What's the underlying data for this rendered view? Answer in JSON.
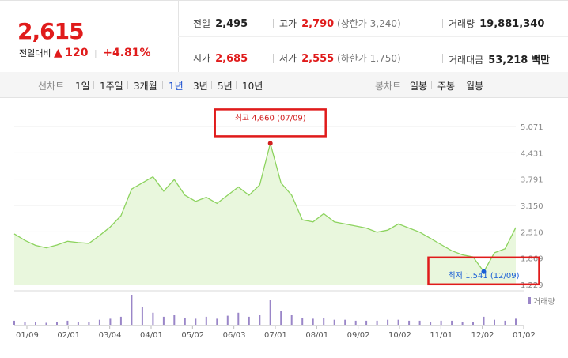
{
  "summary": {
    "price": "2,615",
    "change_label": "전일대비",
    "change_arrow": "▲",
    "change_amount": "120",
    "change_percent": "+4.81%",
    "prev_close_label": "전일",
    "prev_close": "2,495",
    "high_label": "고가",
    "high": "2,790",
    "upper_limit": "(상한가 3,240)",
    "volume_label": "거래량",
    "volume": "19,881,340",
    "open_label": "시가",
    "open": "2,685",
    "low_label": "저가",
    "low": "2,555",
    "lower_limit": "(하한가 1,750)",
    "turnover_label": "거래대금",
    "turnover": "53,218",
    "turnover_unit": "백만"
  },
  "tabs": {
    "line_chart_label": "선차트",
    "periods": [
      "1일",
      "1주일",
      "3개월",
      "1년",
      "3년",
      "5년",
      "10년"
    ],
    "selected_period": "1년",
    "candle_chart_label": "봉차트",
    "candle_periods": [
      "일봉",
      "주봉",
      "월봉"
    ]
  },
  "colors": {
    "accent_red": "#e01b1b",
    "accent_blue": "#1a4fd0",
    "line_green": "#8dd35f",
    "fill_green": "#e9f7dd"
  },
  "chart_data": {
    "type": "area",
    "title": "",
    "xlabel": "",
    "ylabel": "",
    "y_ticks": [
      "5,071",
      "4,431",
      "3,791",
      "3,150",
      "2,510",
      "1,869",
      "1,229"
    ],
    "ylim": [
      1229,
      5071
    ],
    "x_ticks": [
      "01/09",
      "02/01",
      "03/04",
      "04/01",
      "05/02",
      "06/03",
      "07/01",
      "08/01",
      "09/02",
      "10/02",
      "11/01",
      "12/02",
      "01/02"
    ],
    "x": [
      "01/09",
      "01/16",
      "01/23",
      "02/01",
      "02/08",
      "02/15",
      "02/22",
      "03/04",
      "03/11",
      "03/18",
      "03/25",
      "04/01",
      "04/08",
      "04/15",
      "04/22",
      "05/02",
      "05/09",
      "05/16",
      "05/23",
      "06/03",
      "06/10",
      "06/17",
      "06/24",
      "07/01",
      "07/09",
      "07/15",
      "07/22",
      "08/01",
      "08/08",
      "08/15",
      "08/22",
      "09/02",
      "09/09",
      "09/16",
      "09/23",
      "10/02",
      "10/09",
      "10/16",
      "10/23",
      "11/01",
      "11/08",
      "11/15",
      "11/22",
      "12/02",
      "12/09",
      "12/16",
      "12/23",
      "01/02"
    ],
    "y": [
      2460,
      2300,
      2180,
      2120,
      2190,
      2280,
      2250,
      2230,
      2420,
      2630,
      2900,
      3550,
      3700,
      3850,
      3500,
      3780,
      3400,
      3250,
      3350,
      3200,
      3400,
      3600,
      3400,
      3650,
      4660,
      3700,
      3400,
      2800,
      2750,
      2950,
      2750,
      2700,
      2650,
      2600,
      2500,
      2550,
      2700,
      2600,
      2500,
      2350,
      2200,
      2050,
      1950,
      1900,
      1541,
      2000,
      2100,
      2615
    ],
    "volume_label": "거래량",
    "volume": [
      4,
      3,
      3,
      2,
      3,
      4,
      3,
      3,
      5,
      6,
      8,
      30,
      18,
      12,
      8,
      10,
      7,
      6,
      8,
      6,
      9,
      12,
      8,
      10,
      25,
      14,
      10,
      7,
      6,
      7,
      5,
      5,
      4,
      4,
      4,
      5,
      5,
      4,
      4,
      3,
      4,
      4,
      3,
      3,
      8,
      5,
      4,
      6
    ],
    "annotations": [
      {
        "label": "최고 4,660 (07/09)",
        "x": "07/09",
        "y": 4660
      },
      {
        "label": "최저 1,541 (12/09)",
        "x": "12/09",
        "y": 1541
      }
    ]
  }
}
